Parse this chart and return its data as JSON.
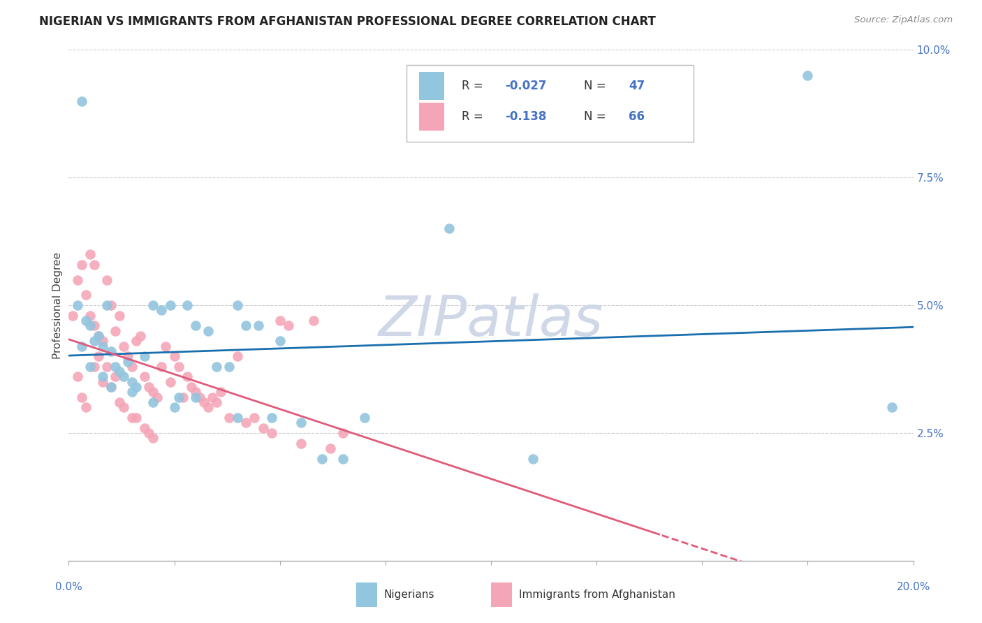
{
  "title": "NIGERIAN VS IMMIGRANTS FROM AFGHANISTAN PROFESSIONAL DEGREE CORRELATION CHART",
  "source": "Source: ZipAtlas.com",
  "ylabel": "Professional Degree",
  "xlim": [
    0.0,
    0.2
  ],
  "ylim": [
    0.0,
    0.1
  ],
  "color_blue": "#92c5de",
  "color_pink": "#f4a6b8",
  "color_blue_dark": "#1a6faf",
  "color_pink_dark": "#e05a7a",
  "watermark": "ZIPatlas",
  "nigerians_x": [
    0.002,
    0.003,
    0.004,
    0.005,
    0.006,
    0.007,
    0.008,
    0.009,
    0.01,
    0.011,
    0.012,
    0.013,
    0.014,
    0.015,
    0.016,
    0.018,
    0.02,
    0.022,
    0.024,
    0.026,
    0.028,
    0.03,
    0.033,
    0.035,
    0.038,
    0.04,
    0.042,
    0.045,
    0.048,
    0.05,
    0.055,
    0.06,
    0.065,
    0.07,
    0.09,
    0.11,
    0.175,
    0.195,
    0.003,
    0.005,
    0.008,
    0.01,
    0.015,
    0.02,
    0.025,
    0.03,
    0.04
  ],
  "nigerians_y": [
    0.05,
    0.09,
    0.047,
    0.046,
    0.043,
    0.044,
    0.042,
    0.05,
    0.041,
    0.038,
    0.037,
    0.036,
    0.039,
    0.035,
    0.034,
    0.04,
    0.05,
    0.049,
    0.05,
    0.032,
    0.05,
    0.046,
    0.045,
    0.038,
    0.038,
    0.05,
    0.046,
    0.046,
    0.028,
    0.043,
    0.027,
    0.02,
    0.02,
    0.028,
    0.065,
    0.02,
    0.095,
    0.03,
    0.042,
    0.038,
    0.036,
    0.034,
    0.033,
    0.031,
    0.03,
    0.032,
    0.028
  ],
  "afghanistan_x": [
    0.001,
    0.002,
    0.003,
    0.004,
    0.005,
    0.005,
    0.006,
    0.006,
    0.007,
    0.008,
    0.009,
    0.01,
    0.011,
    0.012,
    0.013,
    0.014,
    0.015,
    0.016,
    0.017,
    0.018,
    0.019,
    0.02,
    0.021,
    0.022,
    0.023,
    0.024,
    0.025,
    0.026,
    0.027,
    0.028,
    0.029,
    0.03,
    0.031,
    0.032,
    0.033,
    0.034,
    0.035,
    0.036,
    0.038,
    0.04,
    0.042,
    0.044,
    0.046,
    0.048,
    0.05,
    0.052,
    0.055,
    0.058,
    0.062,
    0.065,
    0.002,
    0.003,
    0.004,
    0.006,
    0.008,
    0.01,
    0.012,
    0.015,
    0.018,
    0.02,
    0.007,
    0.009,
    0.011,
    0.013,
    0.016,
    0.019
  ],
  "afghanistan_y": [
    0.048,
    0.055,
    0.058,
    0.052,
    0.048,
    0.06,
    0.046,
    0.058,
    0.044,
    0.043,
    0.055,
    0.05,
    0.045,
    0.048,
    0.042,
    0.04,
    0.038,
    0.043,
    0.044,
    0.036,
    0.034,
    0.033,
    0.032,
    0.038,
    0.042,
    0.035,
    0.04,
    0.038,
    0.032,
    0.036,
    0.034,
    0.033,
    0.032,
    0.031,
    0.03,
    0.032,
    0.031,
    0.033,
    0.028,
    0.04,
    0.027,
    0.028,
    0.026,
    0.025,
    0.047,
    0.046,
    0.023,
    0.047,
    0.022,
    0.025,
    0.036,
    0.032,
    0.03,
    0.038,
    0.035,
    0.034,
    0.031,
    0.028,
    0.026,
    0.024,
    0.04,
    0.038,
    0.036,
    0.03,
    0.028,
    0.025
  ]
}
